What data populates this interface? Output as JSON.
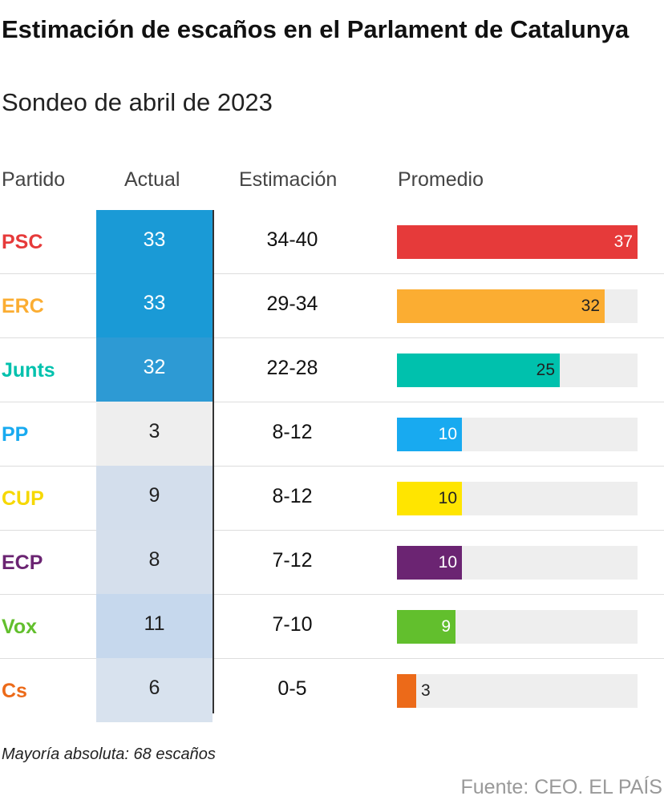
{
  "header": {
    "title": "Estimación de escaños en el Parlament de Catalunya",
    "subtitle": "Sondeo de abril de 2023"
  },
  "columns": {
    "party": "Partido",
    "actual": "Actual",
    "estimate": "Estimación",
    "average": "Promedio"
  },
  "footer": {
    "note": "Mayoría absoluta: 68 escaños",
    "source": "Fuente: CEO. EL PAÍS"
  },
  "chart_data": {
    "type": "table",
    "xlim": [
      0,
      37
    ],
    "rows": [
      {
        "party": "PSC",
        "actual": "33",
        "estimate": "34-40",
        "average": 37,
        "average_label": "37",
        "color": "#e63a3a",
        "actual_color": "#1a9ad6",
        "label_color": "#ffffff"
      },
      {
        "party": "ERC",
        "actual": "33",
        "estimate": "29-34",
        "average": 32,
        "average_label": "32",
        "color": "#fbad32",
        "actual_color": "#1a9ad6",
        "label_color": "#222222"
      },
      {
        "party": "Junts",
        "actual": "32",
        "estimate": "22-28",
        "average": 25,
        "average_label": "25",
        "color": "#00c1ad",
        "actual_color": "#2d9ad4",
        "label_color": "#222222"
      },
      {
        "party": "PP",
        "actual": "3",
        "estimate": "8-12",
        "average": 10,
        "average_label": "10",
        "color": "#18aaf0",
        "actual_color": "#eeeeee",
        "label_color": "#ffffff"
      },
      {
        "party": "CUP",
        "actual": "9",
        "estimate": "8-12",
        "average": 10,
        "average_label": "10",
        "color": "#ffe500",
        "actual_color": "#d3deec",
        "label_color": "#222222",
        "party_color": "#f6d800"
      },
      {
        "party": "ECP",
        "actual": "8",
        "estimate": "7-12",
        "average": 10,
        "average_label": "10",
        "color": "#6b2472",
        "actual_color": "#d5dfec",
        "label_color": "#ffffff"
      },
      {
        "party": "Vox",
        "actual": "11",
        "estimate": "7-10",
        "average": 9,
        "average_label": "9",
        "color": "#62bf2d",
        "actual_color": "#c6d8ed",
        "label_color": "#ffffff"
      },
      {
        "party": "Cs",
        "actual": "6",
        "estimate": "0-5",
        "average": 3,
        "average_label": "3",
        "color": "#ec6a19",
        "actual_color": "#d8e2ee",
        "label_color": "#222222"
      }
    ]
  }
}
